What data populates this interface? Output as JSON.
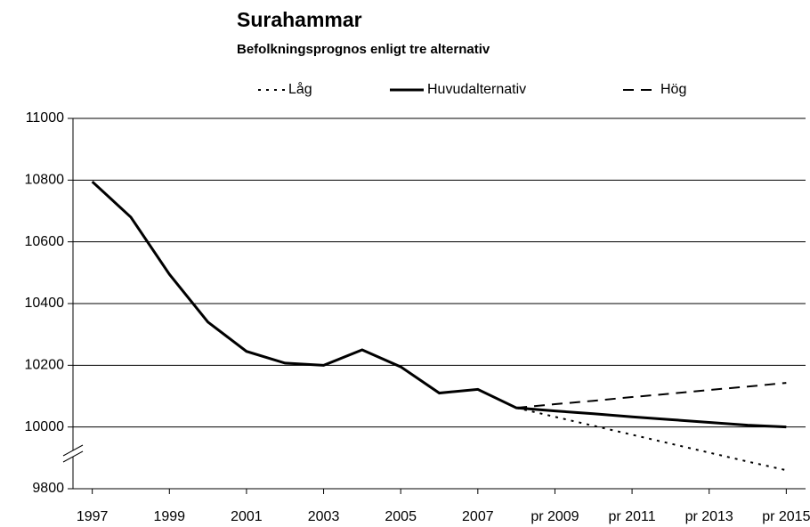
{
  "chart_data": {
    "type": "line",
    "title": "Surahammar",
    "subtitle": "Befolkningsprognos enligt tre alternativ",
    "categories": [
      "1997",
      null,
      "1999",
      null,
      "2001",
      null,
      "2003",
      null,
      "2005",
      null,
      "2007",
      null,
      "pr 2009",
      null,
      "pr 2011",
      null,
      "pr 2013",
      null,
      "pr 2015"
    ],
    "series": [
      {
        "name": "Låg",
        "color": "#000000",
        "dash": "dotted",
        "values": [
          null,
          null,
          null,
          null,
          null,
          null,
          null,
          null,
          null,
          null,
          null,
          10062,
          10033,
          10004,
          9975,
          9946,
          9917,
          9888,
          9860
        ]
      },
      {
        "name": "Huvudalternativ",
        "color": "#000000",
        "dash": "solid",
        "values": [
          10795,
          10680,
          10495,
          10340,
          10245,
          10207,
          10200,
          10250,
          10195,
          10110,
          10122,
          10062,
          10052,
          10043,
          10033,
          10024,
          10015,
          10006,
          10000
        ]
      },
      {
        "name": "Hög",
        "color": "#000000",
        "dash": "dashed",
        "values": [
          null,
          null,
          null,
          null,
          null,
          null,
          null,
          null,
          null,
          null,
          null,
          10062,
          10074,
          10085,
          10097,
          10108,
          10120,
          10131,
          10143
        ]
      }
    ],
    "ylim": [
      9800,
      11000
    ],
    "yticks": [
      9800,
      10000,
      10200,
      10400,
      10600,
      10800,
      11000
    ],
    "grid": true,
    "legend": "top"
  }
}
